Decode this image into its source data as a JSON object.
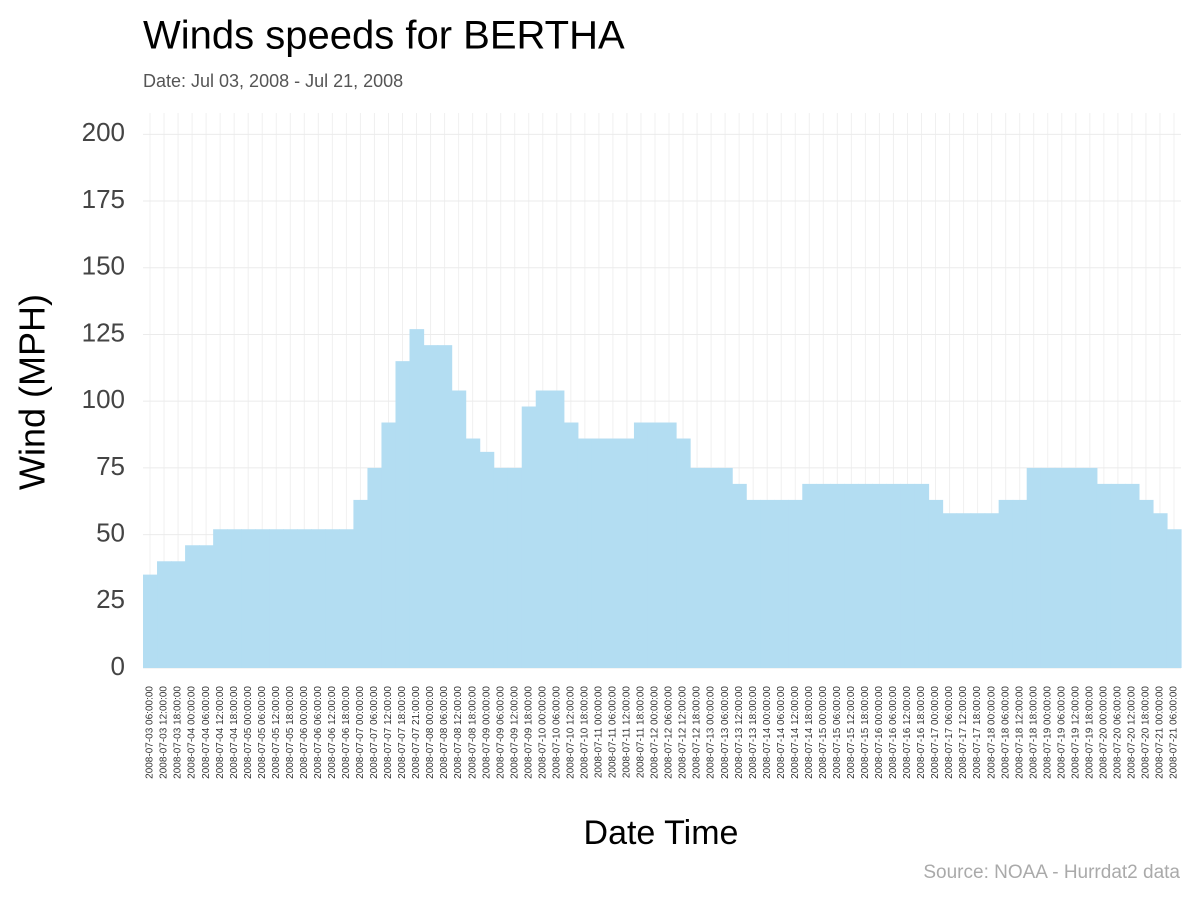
{
  "chart_data": {
    "type": "bar",
    "title": "Winds speeds for BERTHA",
    "subtitle": "Date:  Jul 03, 2008 - Jul 21, 2008",
    "x_label": "Date Time",
    "y_label": "Wind (MPH)",
    "caption": "Source: NOAA - Hurrdat2 data",
    "color": "#b3ddf2",
    "grid": true,
    "categories": [
      "2008-07-03 06:00:00",
      "2008-07-03 12:00:00",
      "2008-07-03 18:00:00",
      "2008-07-04 00:00:00",
      "2008-07-04 06:00:00",
      "2008-07-04 12:00:00",
      "2008-07-04 18:00:00",
      "2008-07-05 00:00:00",
      "2008-07-05 06:00:00",
      "2008-07-05 12:00:00",
      "2008-07-05 18:00:00",
      "2008-07-06 00:00:00",
      "2008-07-06 06:00:00",
      "2008-07-06 12:00:00",
      "2008-07-06 18:00:00",
      "2008-07-07 00:00:00",
      "2008-07-07 06:00:00",
      "2008-07-07 12:00:00",
      "2008-07-07 18:00:00",
      "2008-07-07 21:00:00",
      "2008-07-08 00:00:00",
      "2008-07-08 06:00:00",
      "2008-07-08 12:00:00",
      "2008-07-08 18:00:00",
      "2008-07-09 00:00:00",
      "2008-07-09 06:00:00",
      "2008-07-09 12:00:00",
      "2008-07-09 18:00:00",
      "2008-07-10 00:00:00",
      "2008-07-10 06:00:00",
      "2008-07-10 12:00:00",
      "2008-07-10 18:00:00",
      "2008-07-11 00:00:00",
      "2008-07-11 06:00:00",
      "2008-07-11 12:00:00",
      "2008-07-11 18:00:00",
      "2008-07-12 00:00:00",
      "2008-07-12 06:00:00",
      "2008-07-12 12:00:00",
      "2008-07-12 18:00:00",
      "2008-07-13 00:00:00",
      "2008-07-13 06:00:00",
      "2008-07-13 12:00:00",
      "2008-07-13 18:00:00",
      "2008-07-14 00:00:00",
      "2008-07-14 06:00:00",
      "2008-07-14 12:00:00",
      "2008-07-14 18:00:00",
      "2008-07-15 00:00:00",
      "2008-07-15 06:00:00",
      "2008-07-15 12:00:00",
      "2008-07-15 18:00:00",
      "2008-07-16 00:00:00",
      "2008-07-16 06:00:00",
      "2008-07-16 12:00:00",
      "2008-07-16 18:00:00",
      "2008-07-17 00:00:00",
      "2008-07-17 06:00:00",
      "2008-07-17 12:00:00",
      "2008-07-17 18:00:00",
      "2008-07-18 00:00:00",
      "2008-07-18 06:00:00",
      "2008-07-18 12:00:00",
      "2008-07-18 18:00:00",
      "2008-07-19 00:00:00",
      "2008-07-19 06:00:00",
      "2008-07-19 12:00:00",
      "2008-07-19 18:00:00",
      "2008-07-20 00:00:00",
      "2008-07-20 06:00:00",
      "2008-07-20 12:00:00",
      "2008-07-20 18:00:00",
      "2008-07-21 00:00:00",
      "2008-07-21 06:00:00"
    ],
    "values": [
      35,
      40,
      40,
      46,
      46,
      52,
      52,
      52,
      52,
      52,
      52,
      52,
      52,
      52,
      52,
      63,
      75,
      92,
      115,
      127,
      121,
      121,
      104,
      86,
      81,
      75,
      75,
      98,
      104,
      104,
      92,
      86,
      86,
      86,
      86,
      92,
      92,
      92,
      86,
      75,
      75,
      75,
      69,
      63,
      63,
      63,
      63,
      69,
      69,
      69,
      69,
      69,
      69,
      69,
      69,
      69,
      63,
      58,
      58,
      58,
      58,
      63,
      63,
      75,
      75,
      75,
      75,
      75,
      69,
      69,
      69,
      63,
      58,
      52
    ],
    "ylim": [
      0,
      208
    ],
    "yticks": [
      0,
      25,
      50,
      75,
      100,
      125,
      150,
      175,
      200
    ]
  }
}
